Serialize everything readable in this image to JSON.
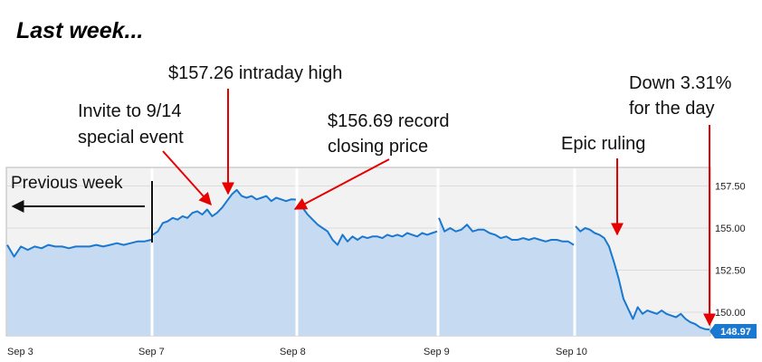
{
  "heading": "Last week...",
  "chart_data": {
    "type": "area",
    "ylim": [
      148.6,
      158.6
    ],
    "yticks": [
      "157.50",
      "155.00",
      "152.50",
      "150.00"
    ],
    "ytick_values": [
      157.5,
      155.0,
      152.5,
      150.0
    ],
    "day_labels": [
      "Sep 3",
      "Sep 7",
      "Sep 8",
      "Sep 9",
      "Sep 10"
    ],
    "last_value_label": "148.97",
    "series": [
      {
        "day": "Sep 3",
        "values": [
          154.0,
          153.3,
          153.9,
          153.7,
          153.9,
          153.8,
          154.0,
          153.9,
          153.9,
          153.8,
          153.9,
          153.9,
          153.9,
          154.0,
          153.9,
          154.0,
          154.1,
          154.0,
          154.1,
          154.2,
          154.2,
          154.3
        ]
      },
      {
        "day": "Sep 7",
        "values": [
          154.6,
          154.8,
          155.3,
          155.4,
          155.6,
          155.5,
          155.7,
          155.6,
          155.9,
          156.0,
          155.8,
          156.1,
          155.7,
          155.9,
          156.2,
          156.6,
          157.0,
          157.26,
          156.9,
          156.8,
          156.9,
          156.7,
          156.8,
          156.9,
          156.6,
          156.8,
          156.7,
          156.6,
          156.7,
          156.69
        ]
      },
      {
        "day": "Sep 8",
        "values": [
          156.3,
          156.2,
          155.8,
          155.5,
          155.2,
          155.0,
          154.8,
          154.3,
          154.0,
          154.6,
          154.2,
          154.5,
          154.3,
          154.5,
          154.4,
          154.5,
          154.5,
          154.4,
          154.6,
          154.5,
          154.6,
          154.5,
          154.7,
          154.6,
          154.5,
          154.7,
          154.6,
          154.7,
          154.8
        ]
      },
      {
        "day": "Sep 9",
        "values": [
          155.6,
          154.8,
          155.0,
          154.8,
          154.9,
          155.2,
          154.8,
          154.9,
          154.9,
          154.7,
          154.6,
          154.4,
          154.5,
          154.3,
          154.3,
          154.4,
          154.3,
          154.4,
          154.3,
          154.2,
          154.3,
          154.3,
          154.2,
          154.2,
          154.0
        ]
      },
      {
        "day": "Sep 10",
        "values": [
          155.1,
          154.8,
          155.0,
          154.9,
          154.7,
          154.6,
          154.4,
          153.9,
          153.0,
          152.0,
          150.8,
          150.2,
          149.6,
          150.3,
          149.9,
          150.1,
          150.0,
          149.9,
          150.1,
          149.9,
          149.8,
          149.7,
          149.9,
          149.6,
          149.4,
          149.3,
          149.1,
          149.0,
          148.97
        ]
      }
    ]
  },
  "annotations": {
    "intraday_high": "$157.26 intraday high",
    "invite_line1": "Invite to 9/14",
    "invite_line2": "special event",
    "record_line1": "$156.69 record",
    "record_line2": "closing price",
    "epic": "Epic ruling",
    "down_line1": "Down 3.31%",
    "down_line2": "for the day",
    "previous_week": "Previous week"
  },
  "colors": {
    "line": "#1a78d0",
    "area": "#c6dbf2",
    "plot_bg": "#f2f2f2",
    "arrow": "#e60000",
    "badge": "#1a78d0",
    "grid": "#dcdcdc"
  }
}
